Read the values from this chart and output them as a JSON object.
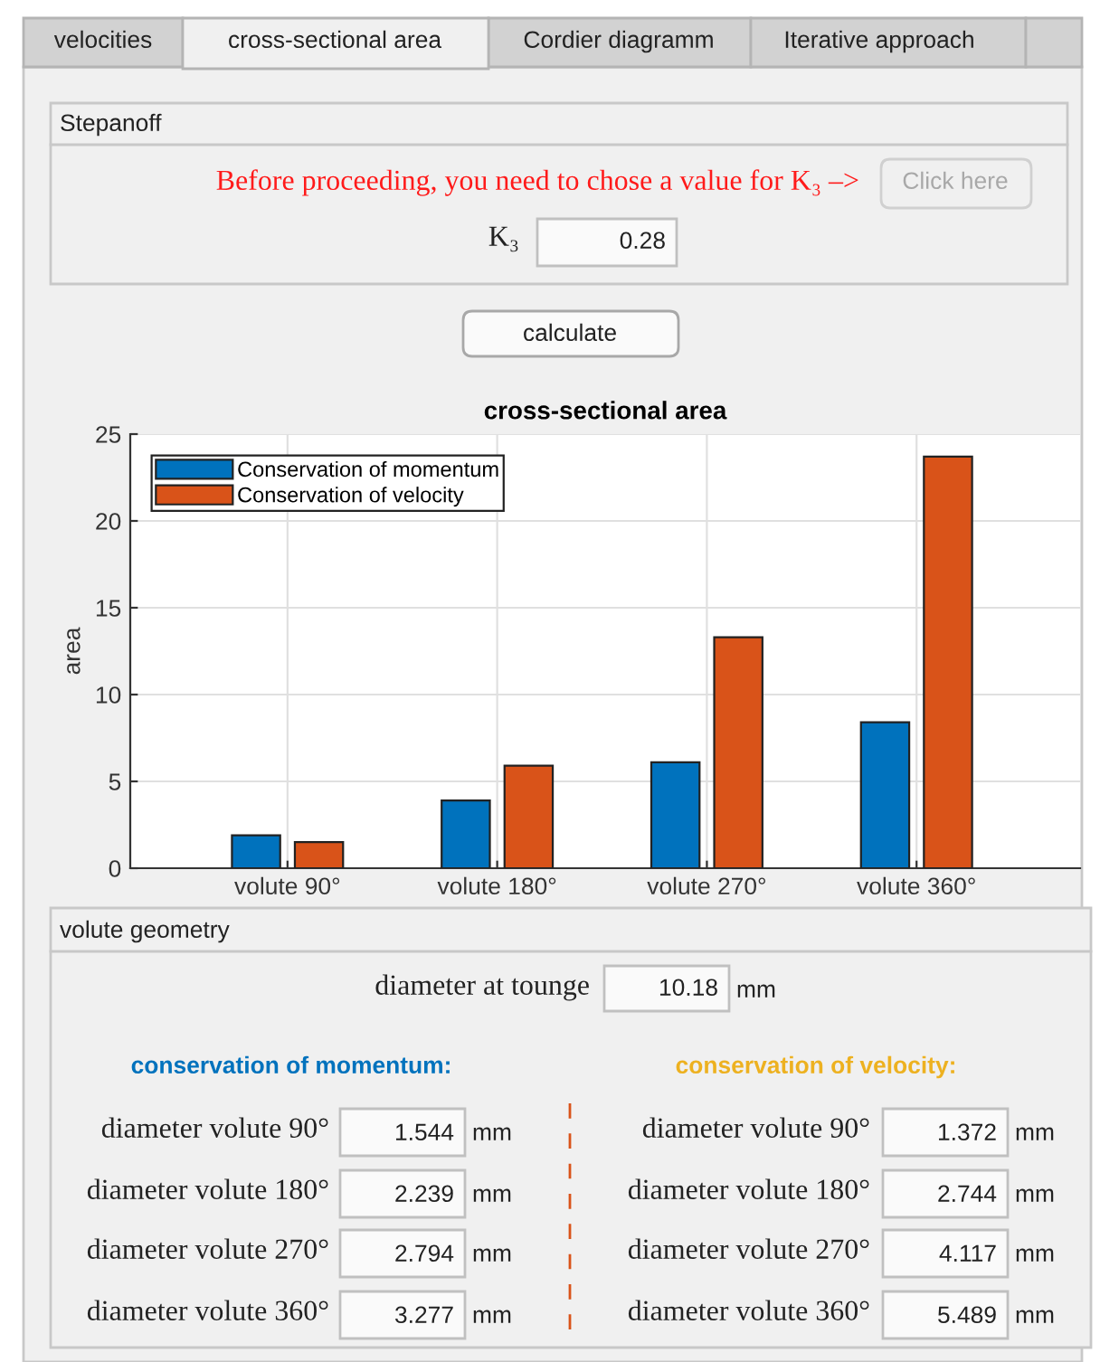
{
  "chart_data": {
    "type": "bar",
    "title": "cross-sectional area",
    "ylabel": "area",
    "categories": [
      "volute 90°",
      "volute 180°",
      "volute 270°",
      "volute 360°"
    ],
    "series": [
      {
        "name": "Conservation of momentum",
        "color": "#0072bd",
        "values": [
          1.9,
          3.9,
          6.1,
          8.4
        ]
      },
      {
        "name": "Conservation of velocity",
        "color": "#d95319",
        "values": [
          1.5,
          5.9,
          13.3,
          23.7
        ]
      }
    ],
    "ylim": [
      0,
      25
    ],
    "yticks": [
      0,
      5,
      10,
      15,
      20,
      25
    ],
    "grid": true,
    "legend": "top left",
    "annotations": [
      "velocities",
      "cross-sectional area",
      "Cordier diagramm",
      "Iterative approach",
      "Stepanoff",
      "Before proceeding, you need to chose a value for K₃ –>",
      "Click here",
      "K₃",
      "0.28",
      "calculate",
      "volute geometry",
      "diameter at tounge",
      "10.18",
      "mm",
      "conservation of momentum:",
      "conservation of velocity:",
      "diameter volute 90°",
      "1.544",
      "mm",
      "diameter volute 180°",
      "2.239",
      "mm",
      "diameter volute 270°",
      "2.794",
      "mm",
      "diameter volute 360°",
      "3.277",
      "mm",
      "diameter volute 90°",
      "1.372",
      "mm",
      "diameter volute 180°",
      "2.744",
      "mm",
      "diameter volute 270°",
      "4.117",
      "mm",
      "diameter volute 360°",
      "5.489",
      "mm"
    ]
  }
}
